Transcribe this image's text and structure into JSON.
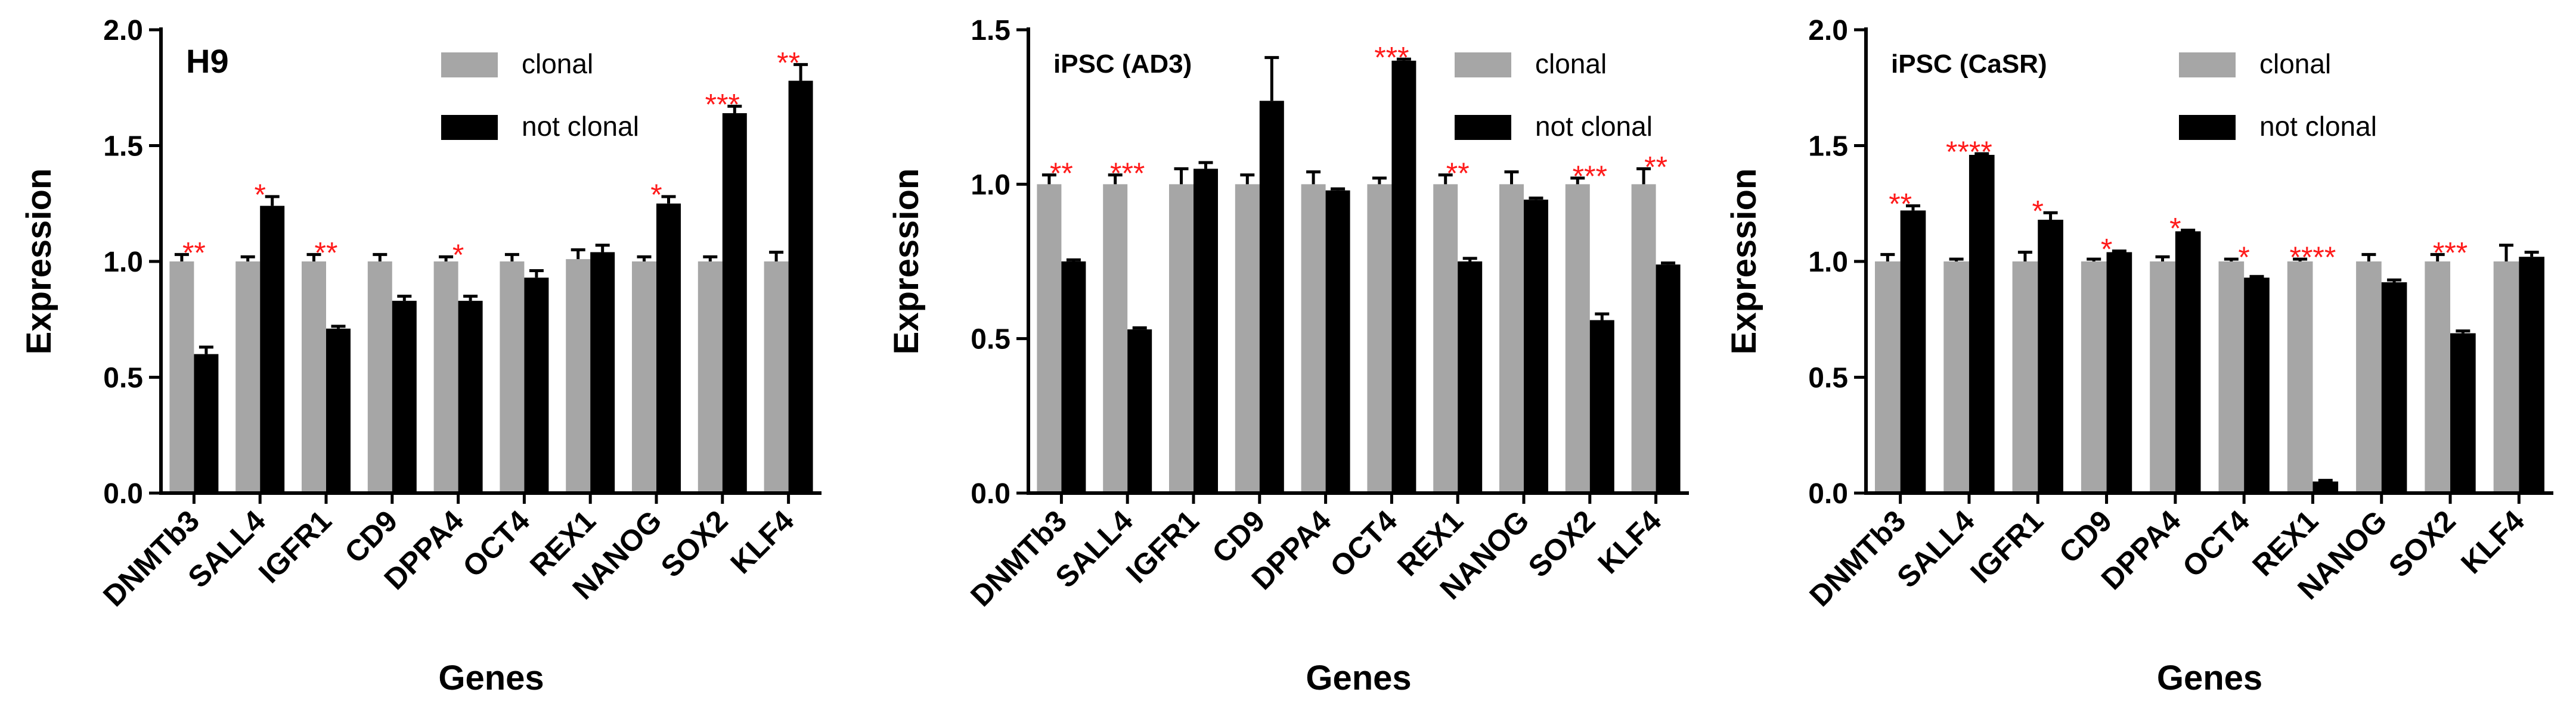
{
  "colors": {
    "clonal": "#a6a6a6",
    "not_clonal": "#000000",
    "significance": "#ff1a1a",
    "axis": "#000000"
  },
  "chart_data": [
    {
      "type": "bar",
      "panel_label": "H9",
      "xlabel": "Genes",
      "ylabel": "Expression",
      "ylim": [
        0,
        2.0
      ],
      "yticks": [
        "0.0",
        "0.5",
        "1.0",
        "1.5",
        "2.0"
      ],
      "categories": [
        "DNMTb3",
        "SALL4",
        "IGFR1",
        "CD9",
        "DPPA4",
        "OCT4",
        "REX1",
        "NANOG",
        "SOX2",
        "KLF4"
      ],
      "legend_position": "top-center",
      "series": [
        {
          "name": "clonal",
          "values": [
            1.0,
            1.0,
            1.0,
            1.0,
            1.0,
            1.0,
            1.01,
            1.0,
            1.0,
            1.0
          ],
          "errors": [
            0.03,
            0.02,
            0.03,
            0.03,
            0.02,
            0.03,
            0.04,
            0.02,
            0.02,
            0.04
          ]
        },
        {
          "name": "not clonal",
          "values": [
            0.6,
            1.24,
            0.71,
            0.83,
            0.83,
            0.93,
            1.04,
            1.25,
            1.64,
            1.78
          ],
          "errors": [
            0.03,
            0.04,
            0.01,
            0.02,
            0.02,
            0.03,
            0.03,
            0.03,
            0.03,
            0.07
          ]
        }
      ],
      "significance": [
        "**",
        "*",
        "**",
        "",
        "*",
        "",
        "",
        "*",
        "***",
        "**"
      ]
    },
    {
      "type": "bar",
      "panel_label": "iPSC (AD3)",
      "xlabel": "Genes",
      "ylabel": "Expression",
      "ylim": [
        0,
        1.5
      ],
      "yticks": [
        "0.0",
        "0.5",
        "1.0",
        "1.5"
      ],
      "categories": [
        "DNMTb3",
        "SALL4",
        "IGFR1",
        "CD9",
        "DPPA4",
        "OCT4",
        "REX1",
        "NANOG",
        "SOX2",
        "KLF4"
      ],
      "legend_position": "top-right",
      "series": [
        {
          "name": "clonal",
          "values": [
            1.0,
            1.0,
            1.0,
            1.0,
            1.0,
            1.0,
            1.0,
            1.0,
            1.0,
            1.0
          ],
          "errors": [
            0.03,
            0.03,
            0.05,
            0.03,
            0.04,
            0.02,
            0.03,
            0.04,
            0.02,
            0.05
          ]
        },
        {
          "name": "not clonal",
          "values": [
            0.75,
            0.53,
            1.05,
            1.27,
            0.98,
            1.4,
            0.75,
            0.95,
            0.56,
            0.74
          ],
          "errors": [
            0.005,
            0.005,
            0.02,
            0.14,
            0.005,
            0.005,
            0.01,
            0.005,
            0.02,
            0.005
          ]
        }
      ],
      "significance": [
        "**",
        "***",
        "",
        "",
        "",
        "***",
        "**",
        "",
        "***",
        "**"
      ]
    },
    {
      "type": "bar",
      "panel_label": "iPSC (CaSR)",
      "xlabel": "Genes",
      "ylabel": "Expression",
      "ylim": [
        0,
        2.0
      ],
      "yticks": [
        "0.0",
        "0.5",
        "1.0",
        "1.5",
        "2.0"
      ],
      "categories": [
        "DNMTb3",
        "SALL4",
        "IGFR1",
        "CD9",
        "DPPA4",
        "OCT4",
        "REX1",
        "NANOG",
        "SOX2",
        "KLF4"
      ],
      "legend_position": "top-center",
      "series": [
        {
          "name": "clonal",
          "values": [
            1.0,
            1.0,
            1.0,
            1.0,
            1.0,
            1.0,
            1.0,
            1.0,
            1.0,
            1.0
          ],
          "errors": [
            0.03,
            0.01,
            0.04,
            0.01,
            0.02,
            0.01,
            0.01,
            0.03,
            0.03,
            0.07
          ]
        },
        {
          "name": "not clonal",
          "values": [
            1.22,
            1.46,
            1.18,
            1.04,
            1.13,
            0.93,
            0.05,
            0.91,
            0.69,
            1.02
          ],
          "errors": [
            0.02,
            0.005,
            0.03,
            0.005,
            0.005,
            0.005,
            0.005,
            0.01,
            0.01,
            0.02
          ]
        }
      ],
      "significance": [
        "**",
        "****",
        "*",
        "*",
        "*",
        "*",
        "****",
        "",
        "***",
        ""
      ]
    }
  ]
}
